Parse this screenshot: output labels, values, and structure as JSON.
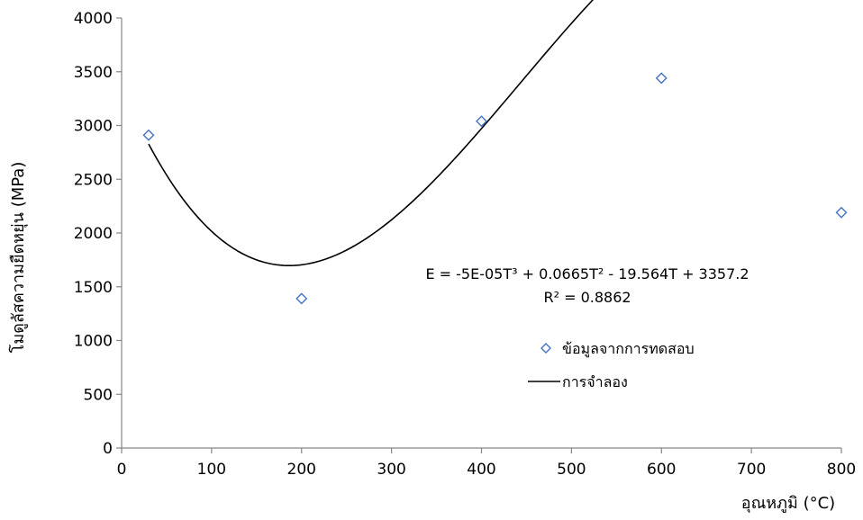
{
  "chart_data": {
    "type": "scatter",
    "title": "",
    "xlabel": "อุณหภูมิ (°C)",
    "ylabel": "โมดูลัสความยืดหยุ่น  (MPa)",
    "xlim": [
      0,
      800
    ],
    "ylim": [
      0,
      4000
    ],
    "xticks": [
      0,
      100,
      200,
      300,
      400,
      500,
      600,
      700,
      800
    ],
    "yticks": [
      0,
      500,
      1000,
      1500,
      2000,
      2500,
      3000,
      3500,
      4000
    ],
    "grid": false,
    "legend_position": "right",
    "series": [
      {
        "name": "ข้อมูลจากการทดสอบ",
        "kind": "scatter",
        "marker": "diamond",
        "color": "#4472C4",
        "x": [
          30,
          200,
          400,
          600,
          800
        ],
        "y": [
          2910,
          1390,
          3040,
          3440,
          2190
        ]
      },
      {
        "name": "การจำลอง",
        "kind": "line",
        "color": "#000000",
        "equation_coefficients": [
          -5e-05,
          0.0665,
          -19.564,
          3357.2
        ],
        "x_range": [
          30,
          800
        ]
      }
    ],
    "annotations": {
      "equation": "E = -5E-05T³ + 0.0665T² - 19.564T + 3357.2",
      "r_squared": "R² = 0.8862"
    }
  }
}
